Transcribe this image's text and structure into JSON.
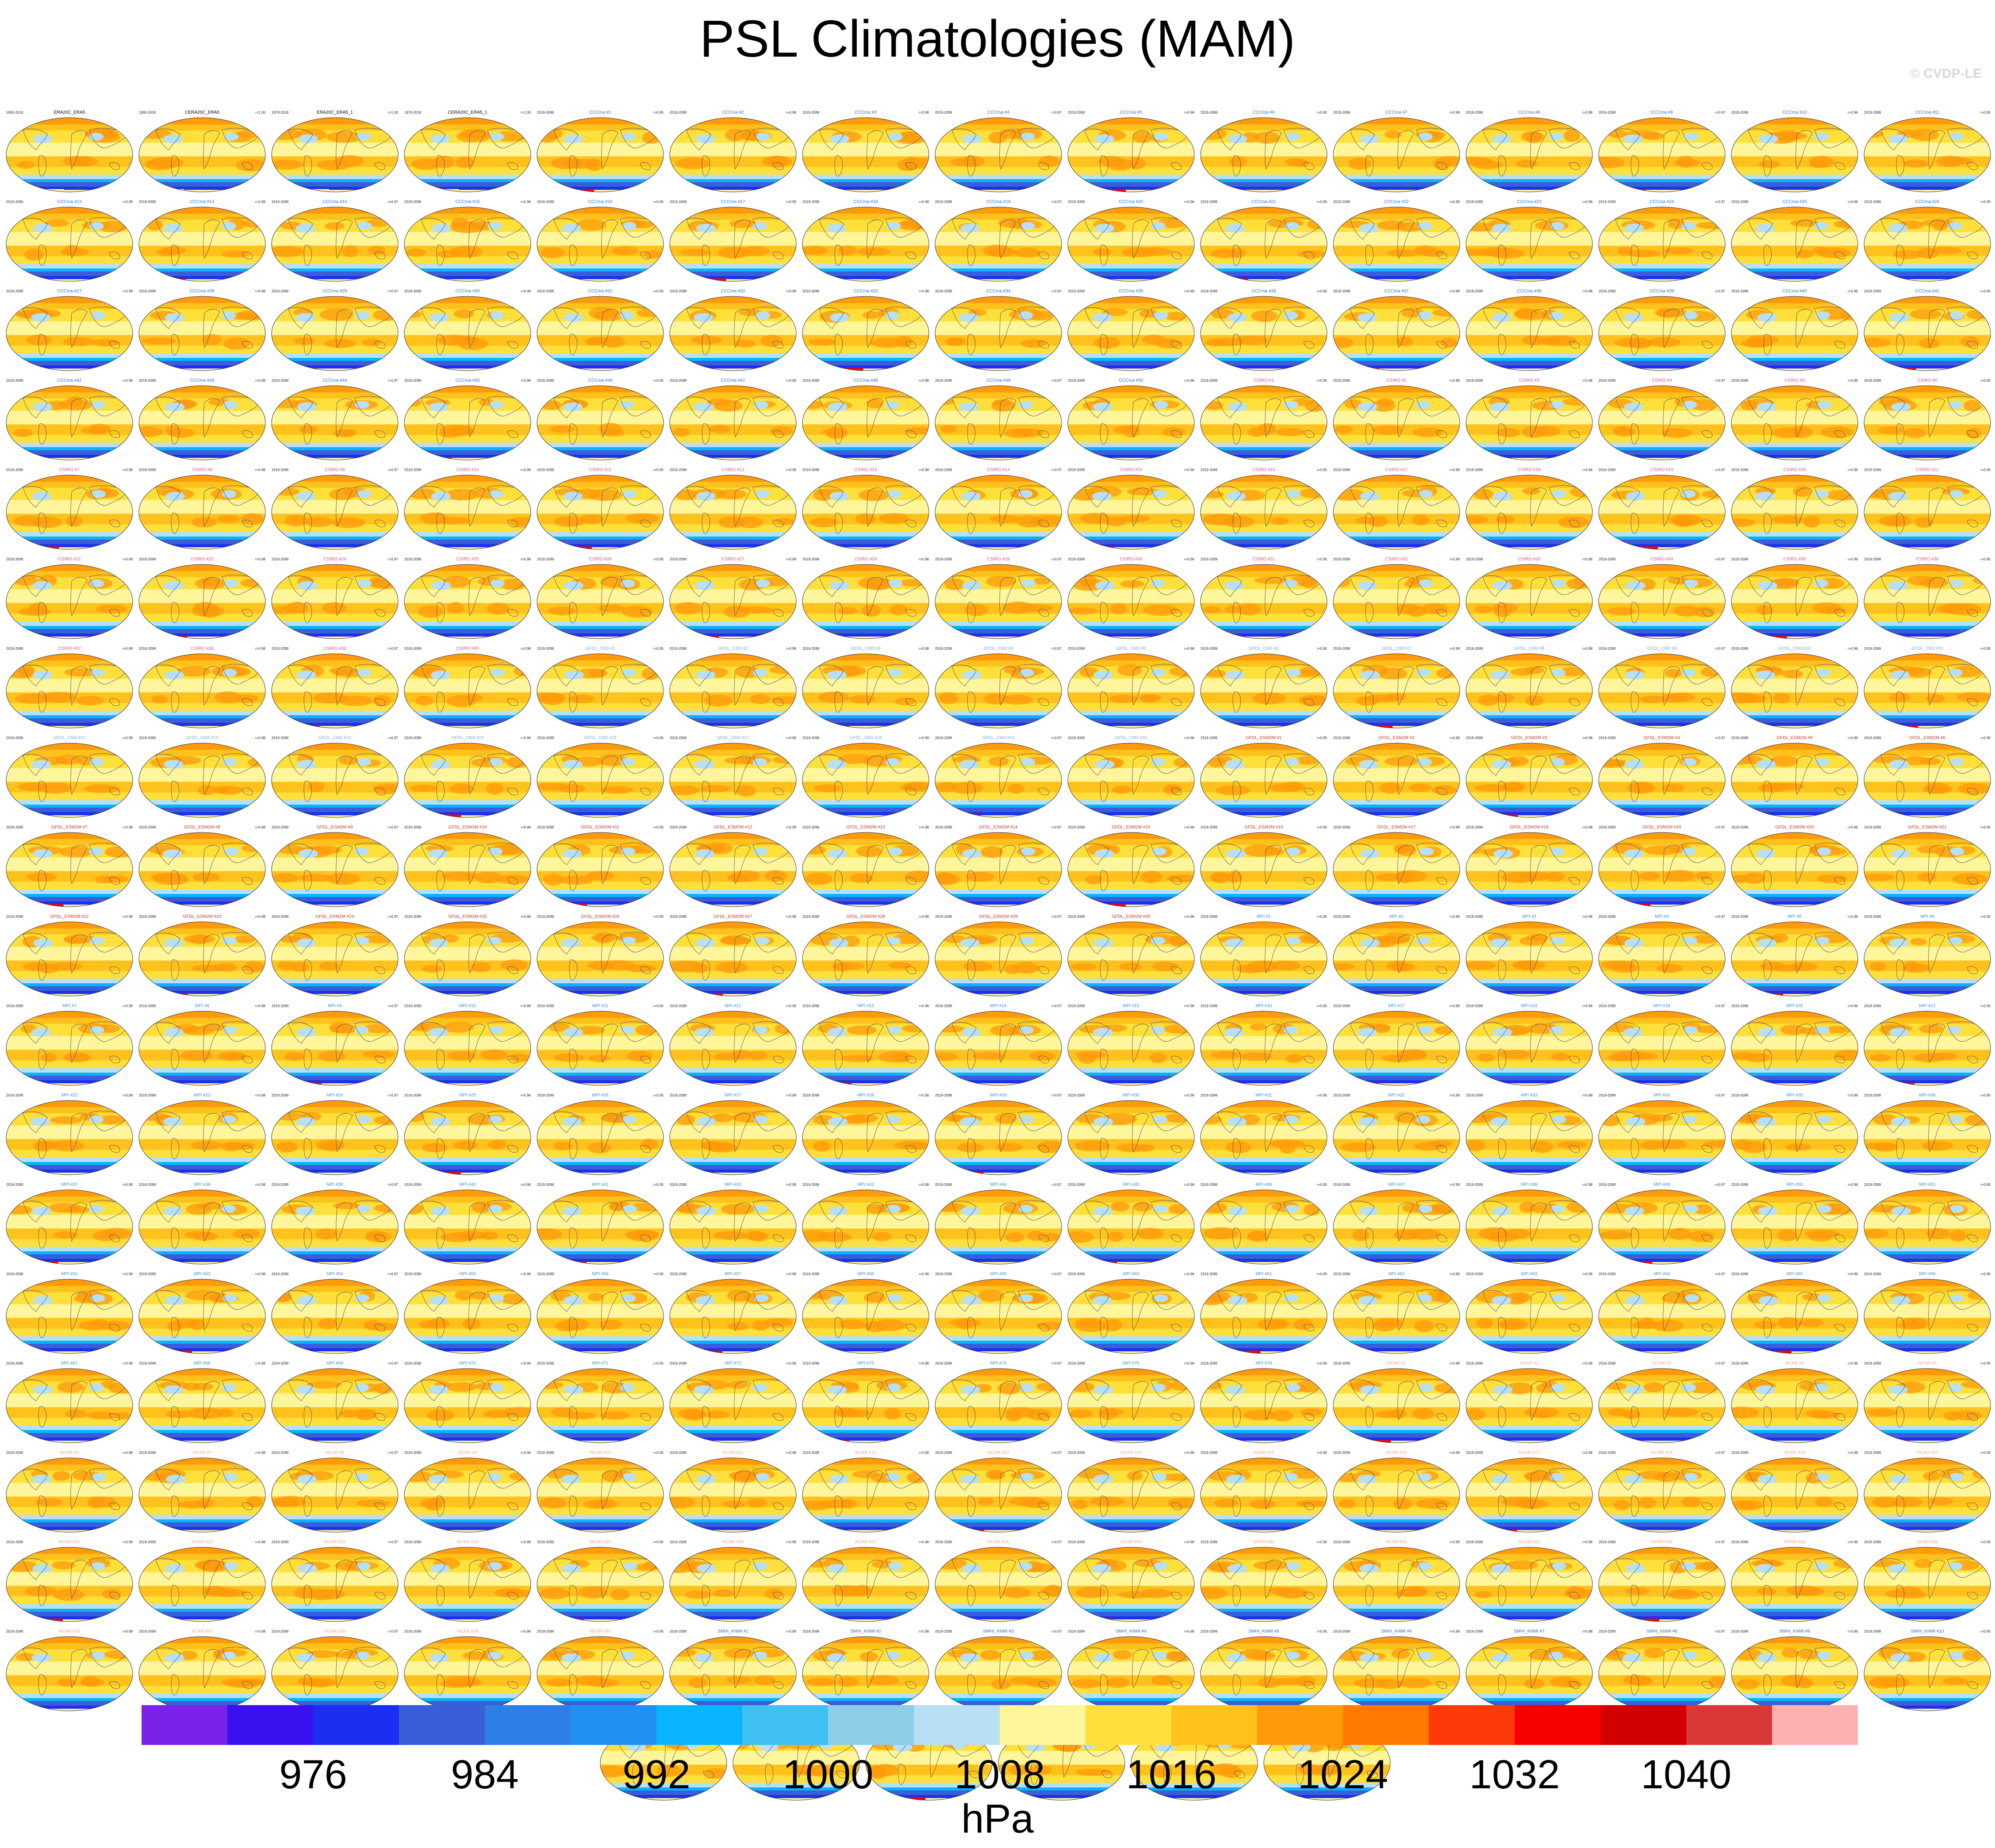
{
  "title": "PSL Climatologies (MAM)",
  "watermark": "© CVDP-LE",
  "chart_data": {
    "type": "heatmap",
    "variable": "PSL",
    "season": "MAM",
    "projection": "global map (elliptical)",
    "panel_count": 236,
    "panels": [
      {
        "name": "ERA20C_ERA5",
        "period": "1900-2018",
        "group": "obs",
        "color": "#000000"
      },
      {
        "name": "CERA20C_ERA5",
        "period": "1900-2018",
        "group": "obs",
        "color": "#000000"
      },
      {
        "name": "ERA20C_ERA5_1",
        "period": "1979-2018",
        "group": "obs",
        "color": "#000000"
      },
      {
        "name": "CERA20C_ERA5_1",
        "period": "1979-2018",
        "group": "obs",
        "color": "#000000"
      },
      {
        "name": "CCCma",
        "members": 50,
        "period": "2019-2099",
        "color": "#1f6fd0"
      },
      {
        "name": "CSIRO",
        "members": 40,
        "period": "2019-2099",
        "color": "#d94f8a"
      },
      {
        "name": "GFDL_CM3",
        "members": 20,
        "period": "2019-2099",
        "color": "#7aa8d8"
      },
      {
        "name": "GFDL_ESM2M",
        "members": 30,
        "period": "2019-2099",
        "color": "#c0392b"
      },
      {
        "name": "MPI",
        "members": 76,
        "period": "2019-2099",
        "color": "#3a8fd8"
      },
      {
        "name": "NCAR",
        "members": 40,
        "period": "2019-2099",
        "color": "#f4a09a"
      },
      {
        "name": "SMHI_KNMI",
        "members": 16,
        "period": "2019-2099",
        "color": "#2a6fb0"
      }
    ],
    "pattern_correlations_shown": [
      "r=1.00",
      "r=0.99",
      "r=0.98",
      "r=0.97",
      "r=0.96",
      "r=0.95"
    ],
    "colorbar": {
      "label": "hPa",
      "ticks": [
        976,
        984,
        992,
        1000,
        1008,
        1016,
        1024,
        1032,
        1040
      ],
      "levels": [
        972,
        976,
        980,
        984,
        988,
        992,
        996,
        1000,
        1004,
        1008,
        1012,
        1016,
        1020,
        1024,
        1028,
        1032,
        1036,
        1040,
        1044
      ],
      "colors": [
        "#7b22e8",
        "#3b10f0",
        "#1a2ff0",
        "#3a5ed8",
        "#2e7ee8",
        "#2190f0",
        "#08b4ff",
        "#3ec0f0",
        "#8ecde8",
        "#b8e0f4",
        "#fff59a",
        "#ffe03a",
        "#ffc21c",
        "#ff9a0a",
        "#ff7a00",
        "#ff3a0a",
        "#f80000",
        "#d20000",
        "#d83838",
        "#ffb0b0"
      ]
    }
  }
}
